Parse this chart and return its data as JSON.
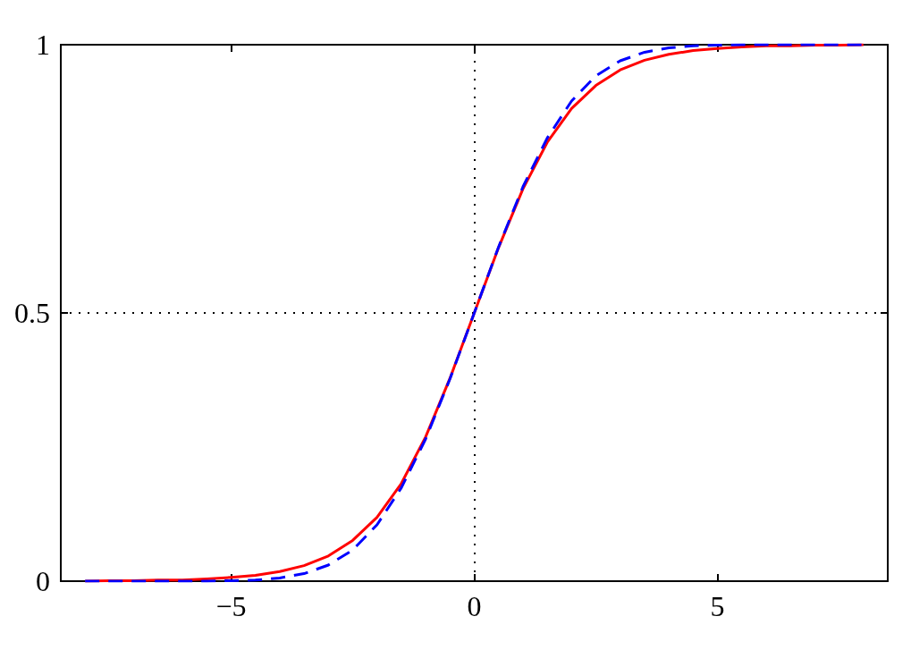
{
  "chart_data": {
    "type": "line",
    "x": [
      -8,
      -7.5,
      -7,
      -6.5,
      -6,
      -5.5,
      -5,
      -4.5,
      -4,
      -3.5,
      -3,
      -2.5,
      -2,
      -1.5,
      -1,
      -0.5,
      0,
      0.5,
      1,
      1.5,
      2,
      2.5,
      3,
      3.5,
      4,
      4.5,
      5,
      5.5,
      6,
      6.5,
      7,
      7.5,
      8
    ],
    "series": [
      {
        "color": "#ff0000",
        "line_style": "solid",
        "values": [
          0,
          0.001,
          0.001,
          0.002,
          0.002,
          0.004,
          0.007,
          0.011,
          0.018,
          0.029,
          0.047,
          0.076,
          0.119,
          0.182,
          0.269,
          0.378,
          0.5,
          0.622,
          0.731,
          0.818,
          0.881,
          0.924,
          0.953,
          0.971,
          0.982,
          0.989,
          0.993,
          0.996,
          0.998,
          0.998,
          0.999,
          0.999,
          1
        ]
      },
      {
        "color": "#0000ff",
        "line_style": "dashed",
        "values": [
          0,
          0,
          0,
          0,
          0,
          0,
          0.001,
          0.002,
          0.006,
          0.014,
          0.03,
          0.058,
          0.105,
          0.174,
          0.265,
          0.377,
          0.5,
          0.623,
          0.735,
          0.826,
          0.895,
          0.942,
          0.97,
          0.986,
          0.994,
          0.998,
          0.999,
          1,
          1,
          1,
          1,
          1,
          1
        ]
      }
    ],
    "xlim": [
      -8.5,
      8.5
    ],
    "xticks": [
      -5,
      0,
      5
    ],
    "ylim": [
      0,
      1
    ],
    "yticks": [
      0,
      0.5,
      1
    ],
    "grid": false,
    "marker": "none",
    "ref_lines": [
      {
        "axis": "x",
        "value": 0,
        "color": "#000000",
        "line_style": "dotted"
      },
      {
        "axis": "y",
        "value": 0.5,
        "color": "#000000",
        "line_style": "dotted"
      }
    ]
  }
}
